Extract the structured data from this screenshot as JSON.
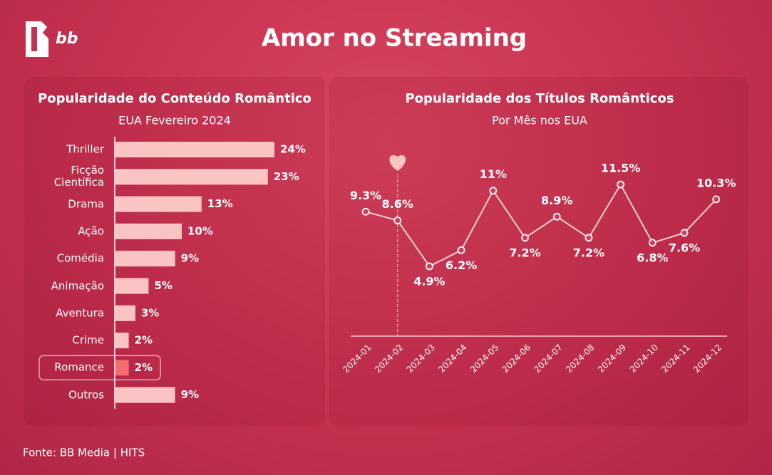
{
  "title": "Amor no Streaming",
  "logo": "bb",
  "source": "Fonte: BB Media | HITS",
  "chart_data": [
    {
      "type": "barh",
      "title": "Popularidade do Conteúdo Romântico",
      "subtitle": "EUA Fevereiro 2024",
      "categories": [
        "Thriller",
        "Ficção Científica",
        "Drama",
        "Ação",
        "Comédia",
        "Animação",
        "Aventura",
        "Crime",
        "Romance",
        "Outros"
      ],
      "values": [
        24,
        23,
        13,
        10,
        9,
        5,
        3,
        2,
        2,
        9
      ],
      "value_labels": [
        "24%",
        "23%",
        "13%",
        "10%",
        "9%",
        "5%",
        "3%",
        "2%",
        "2%",
        "9%"
      ],
      "color": "#fbc4c4",
      "highlight_index": 8,
      "highlight_color": "#f26b6e"
    },
    {
      "type": "line",
      "title": "Popularidade dos Títulos Românticos",
      "subtitle": "Por Mês nos EUA",
      "categories": [
        "2024-01",
        "2024-02",
        "2024-03",
        "2024-04",
        "2024-05",
        "2024-06",
        "2024-07",
        "2024-08",
        "2024-09",
        "2024-10",
        "2024-11",
        "2024-12"
      ],
      "values": [
        9.3,
        8.6,
        4.9,
        6.2,
        11,
        7.2,
        8.9,
        7.2,
        11.5,
        6.8,
        7.6,
        10.3
      ],
      "value_labels": [
        "9.3%",
        "8.6%",
        "4.9%",
        "6.2%",
        "11%",
        "7.2%",
        "8.9%",
        "7.2%",
        "11.5%",
        "6.8%",
        "7.6%",
        "10.3%"
      ],
      "color": "#fbd0d0",
      "highlight_index": 1
    }
  ]
}
